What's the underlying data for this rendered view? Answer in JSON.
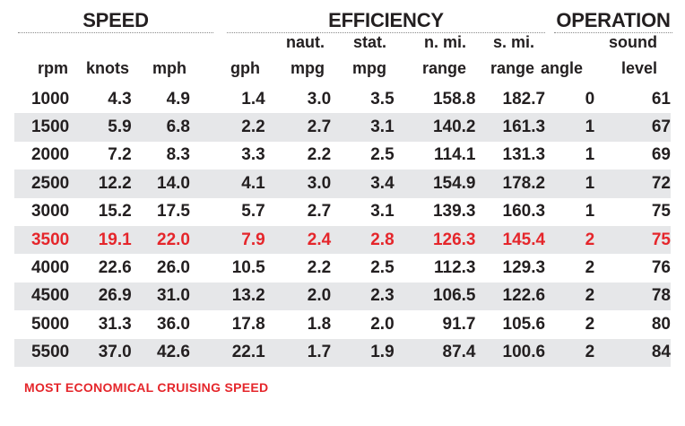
{
  "sections": {
    "speed": "SPEED",
    "efficiency": "EFFICIENCY",
    "operation": "OPERATION"
  },
  "columns": [
    {
      "top": "",
      "bottom": "rpm"
    },
    {
      "top": "",
      "bottom": "knots"
    },
    {
      "top": "",
      "bottom": "mph"
    },
    {
      "top": "",
      "bottom": "gph"
    },
    {
      "top": "naut.",
      "bottom": "mpg"
    },
    {
      "top": "stat.",
      "bottom": "mpg"
    },
    {
      "top": "n. mi.",
      "bottom": "range"
    },
    {
      "top": "s. mi.",
      "bottom": "range"
    },
    {
      "top": "",
      "bottom": "angle"
    },
    {
      "top": "sound",
      "bottom": "level"
    }
  ],
  "chart_data": {
    "type": "table",
    "rows": [
      [
        "1000",
        "4.3",
        "4.9",
        "1.4",
        "3.0",
        "3.5",
        "158.8",
        "182.7",
        "0",
        "61"
      ],
      [
        "1500",
        "5.9",
        "6.8",
        "2.2",
        "2.7",
        "3.1",
        "140.2",
        "161.3",
        "1",
        "67"
      ],
      [
        "2000",
        "7.2",
        "8.3",
        "3.3",
        "2.2",
        "2.5",
        "114.1",
        "131.3",
        "1",
        "69"
      ],
      [
        "2500",
        "12.2",
        "14.0",
        "4.1",
        "3.0",
        "3.4",
        "154.9",
        "178.2",
        "1",
        "72"
      ],
      [
        "3000",
        "15.2",
        "17.5",
        "5.7",
        "2.7",
        "3.1",
        "139.3",
        "160.3",
        "1",
        "75"
      ],
      [
        "3500",
        "19.1",
        "22.0",
        "7.9",
        "2.4",
        "2.8",
        "126.3",
        "145.4",
        "2",
        "75"
      ],
      [
        "4000",
        "22.6",
        "26.0",
        "10.5",
        "2.2",
        "2.5",
        "112.3",
        "129.3",
        "2",
        "76"
      ],
      [
        "4500",
        "26.9",
        "31.0",
        "13.2",
        "2.0",
        "2.3",
        "106.5",
        "122.6",
        "2",
        "78"
      ],
      [
        "5000",
        "31.3",
        "36.0",
        "17.8",
        "1.8",
        "2.0",
        "91.7",
        "105.6",
        "2",
        "80"
      ],
      [
        "5500",
        "37.0",
        "42.6",
        "22.1",
        "1.7",
        "1.9",
        "87.4",
        "100.6",
        "2",
        "84"
      ]
    ],
    "highlight_row": 5,
    "highlight_color": "#e5262b",
    "stripe_color": "#e6e7e9",
    "grid": false
  },
  "footnote": "MOST ECONOMICAL CRUISING SPEED"
}
